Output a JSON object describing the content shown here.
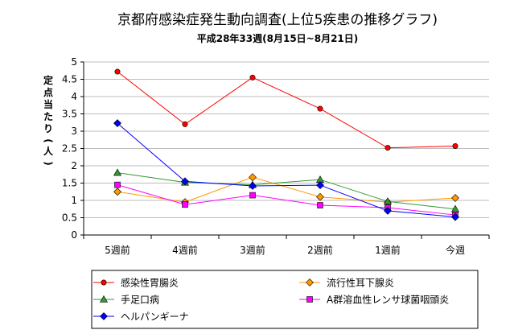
{
  "chart_data": {
    "type": "line",
    "title": "京都府感染症発生動向調査(上位5疾患の推移グラフ)",
    "subtitle": "平成28年33週(8月15日~8月21日)",
    "ylabel": "定点当たり(人)",
    "xlabel": "",
    "categories": [
      "5週前",
      "4週前",
      "3週前",
      "2週前",
      "1週前",
      "今週"
    ],
    "ylim": [
      0,
      5
    ],
    "yticks": [
      0,
      0.5,
      1,
      1.5,
      2,
      2.5,
      3,
      3.5,
      4,
      4.5,
      5
    ],
    "ytick_labels": [
      "0",
      "0.5",
      "1",
      "1.5",
      "2",
      "2.5",
      "3",
      "3.5",
      "4",
      "4.5",
      "5"
    ],
    "grid": true,
    "legend_position": "bottom",
    "series": [
      {
        "name": "感染性胃腸炎",
        "color": "#ff0000",
        "marker": "circle",
        "values": [
          4.72,
          3.2,
          4.55,
          3.65,
          2.52,
          2.57
        ]
      },
      {
        "name": "流行性耳下腺炎",
        "color": "#ff9900",
        "marker": "diamond",
        "values": [
          1.25,
          0.95,
          1.67,
          1.1,
          0.95,
          1.07
        ]
      },
      {
        "name": "手足口病",
        "color": "#339933",
        "marker": "triangle",
        "values": [
          1.8,
          1.52,
          1.45,
          1.6,
          0.97,
          0.75
        ]
      },
      {
        "name": "A群溶血性レンサ球菌咽頭炎",
        "color": "#ff00ff",
        "marker": "square",
        "values": [
          1.45,
          0.88,
          1.15,
          0.86,
          0.79,
          0.58
        ]
      },
      {
        "name": "ヘルパンギーナ",
        "color": "#0000ff",
        "marker": "diamond",
        "values": [
          3.23,
          1.55,
          1.42,
          1.44,
          0.7,
          0.52
        ]
      }
    ]
  }
}
